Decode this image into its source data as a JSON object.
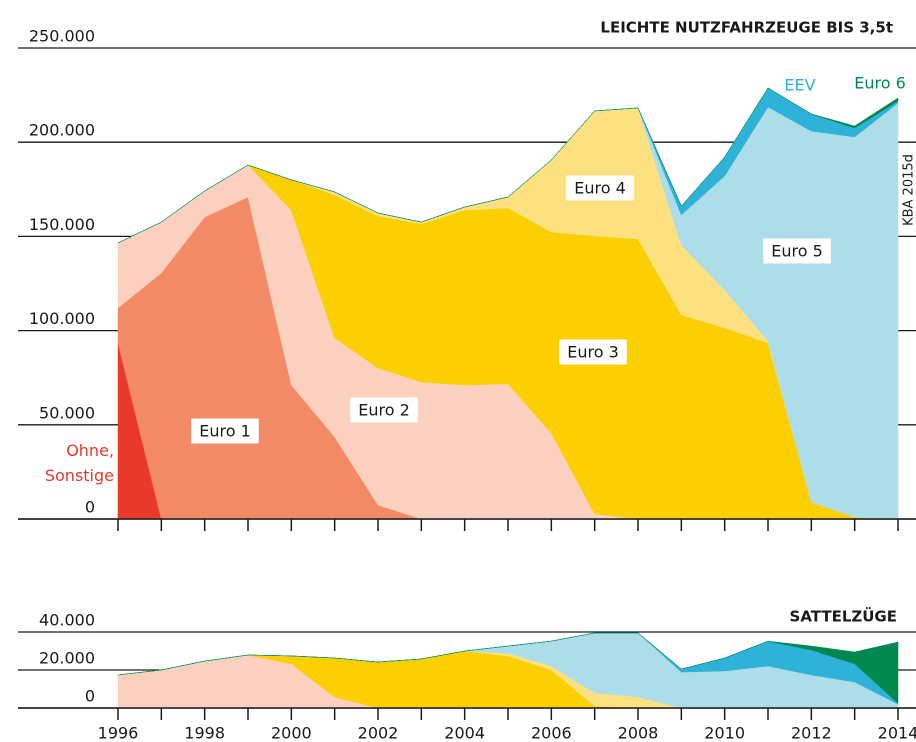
{
  "chart_data": [
    {
      "type": "stacked_area",
      "title": "LEICHTE NUTZFAHRZEUGE BIS 3,5t",
      "source": "KBA 2015d",
      "x": [
        1996,
        1997,
        1998,
        1999,
        2000,
        2001,
        2002,
        2003,
        2004,
        2005,
        2006,
        2007,
        2008,
        2009,
        2010,
        2011,
        2012,
        2013,
        2014
      ],
      "xlim": [
        1996,
        2014
      ],
      "ylim": [
        0,
        250000
      ],
      "yticks": [
        {
          "value": 250000,
          "label": "250.000"
        },
        {
          "value": 200000,
          "label": "200.000"
        },
        {
          "value": 150000,
          "label": "150.000"
        },
        {
          "value": 100000,
          "label": "100.000"
        },
        {
          "value": 50000,
          "label": "50.000"
        },
        0
      ],
      "grid": true,
      "series": [
        {
          "name": "Ohne, Sonstige",
          "color": "#e8392b",
          "values": [
            93400,
            0,
            0,
            0,
            0,
            0,
            0,
            0,
            0,
            0,
            0,
            0,
            0,
            0,
            0,
            0,
            0,
            0,
            0
          ]
        },
        {
          "name": "Euro 1",
          "color": "#f28a66",
          "values": [
            18600,
            130600,
            160300,
            170900,
            71100,
            43500,
            7400,
            0,
            0,
            0,
            0,
            0,
            0,
            0,
            0,
            0,
            0,
            0,
            0
          ]
        },
        {
          "name": "Euro 2",
          "color": "#fcd0be",
          "values": [
            34500,
            27000,
            13800,
            17000,
            92900,
            52600,
            72700,
            72700,
            71100,
            71700,
            45600,
            2700,
            0,
            0,
            0,
            0,
            0,
            0,
            0
          ]
        },
        {
          "name": "Euro 3",
          "color": "#fccf00",
          "values": [
            0,
            0,
            0,
            0,
            16000,
            75900,
            80700,
            83900,
            92900,
            93400,
            106700,
            147500,
            148600,
            108300,
            101400,
            93400,
            9000,
            1000,
            0
          ]
        },
        {
          "name": "Euro 4",
          "color": "#fde080",
          "values": [
            0,
            0,
            0,
            0,
            0,
            1600,
            1600,
            1000,
            1600,
            5800,
            38300,
            66400,
            69600,
            37100,
            20200,
            1100,
            0,
            0,
            0
          ]
        },
        {
          "name": "Euro 5",
          "color": "#acdde8",
          "values": [
            0,
            0,
            0,
            0,
            0,
            0,
            0,
            0,
            0,
            0,
            0,
            0,
            0,
            16000,
            60500,
            124200,
            196900,
            201800,
            220800
          ]
        },
        {
          "name": "EEV",
          "color": "#2fb2d8",
          "values": [
            0,
            0,
            0,
            0,
            0,
            0,
            0,
            0,
            0,
            0,
            0,
            0,
            0,
            4700,
            10000,
            10100,
            9100,
            4700,
            1100
          ]
        },
        {
          "name": "Euro 6",
          "color": "#00894f",
          "values": [
            0,
            0,
            0,
            0,
            0,
            0,
            0,
            0,
            0,
            0,
            0,
            0,
            0,
            0,
            0,
            0,
            0,
            1100,
            1600
          ]
        }
      ]
    },
    {
      "type": "stacked_area",
      "title": "SATTELZÜGE",
      "x": [
        1996,
        1997,
        1998,
        1999,
        2000,
        2001,
        2002,
        2003,
        2004,
        2005,
        2006,
        2007,
        2008,
        2009,
        2010,
        2011,
        2012,
        2013,
        2014
      ],
      "xlim": [
        1996,
        2014
      ],
      "xticks": [
        1996,
        1998,
        2000,
        2002,
        2004,
        2006,
        2008,
        2010,
        2012,
        2014
      ],
      "ylim": [
        0,
        40000
      ],
      "yticks": [
        {
          "value": 40000,
          "label": "40.000"
        },
        {
          "value": 20000,
          "label": "20.000"
        },
        0
      ],
      "grid": true,
      "series": [
        {
          "color": "#fcd0be",
          "values": [
            17400,
            20000,
            24700,
            27900,
            23200,
            5800,
            0,
            0,
            0,
            0,
            0,
            0,
            0,
            0,
            0,
            0,
            0,
            0,
            0
          ]
        },
        {
          "color": "#fccf00",
          "values": [
            0,
            0,
            0,
            0,
            4200,
            20500,
            24200,
            25800,
            30000,
            27400,
            20000,
            1000,
            0,
            0,
            0,
            0,
            0,
            0,
            0
          ]
        },
        {
          "color": "#fde080",
          "values": [
            0,
            0,
            0,
            0,
            0,
            0,
            0,
            0,
            0,
            1500,
            2100,
            6900,
            5800,
            0,
            0,
            0,
            0,
            0,
            0
          ]
        },
        {
          "color": "#acdde8",
          "values": [
            0,
            0,
            0,
            0,
            0,
            0,
            0,
            0,
            0,
            3700,
            13100,
            31600,
            33700,
            18900,
            19500,
            22100,
            17400,
            13700,
            2000
          ]
        },
        {
          "color": "#2fb2d8",
          "values": [
            0,
            0,
            0,
            0,
            0,
            0,
            0,
            0,
            0,
            0,
            0,
            0,
            0,
            1600,
            6800,
            13100,
            13100,
            9500,
            500
          ]
        },
        {
          "color": "#00894f",
          "values": [
            0,
            0,
            0,
            0,
            0,
            0,
            0,
            0,
            0,
            0,
            0,
            0,
            0,
            0,
            0,
            0,
            2100,
            6300,
            32200
          ]
        }
      ]
    }
  ]
}
